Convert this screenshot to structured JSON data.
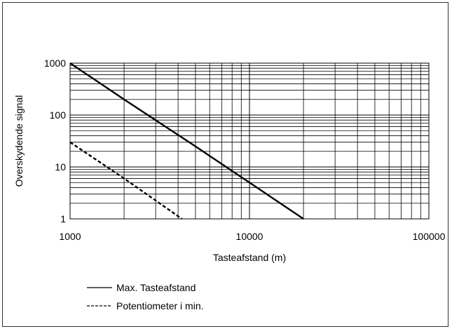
{
  "chart_data": {
    "type": "line",
    "title": "",
    "xlabel": "Tasteafstand (m)",
    "ylabel": "Overskydende signal",
    "x_scale": "log",
    "y_scale": "log",
    "xlim": [
      1000,
      100000
    ],
    "ylim": [
      1,
      1000
    ],
    "x_ticks": [
      1000,
      10000,
      100000
    ],
    "x_tick_labels": [
      "1000",
      "10000",
      "100000"
    ],
    "y_ticks": [
      1,
      10,
      100,
      1000
    ],
    "y_tick_labels": [
      "1",
      "10",
      "100",
      "1000"
    ],
    "grid": true,
    "legend_position": "below-left",
    "series": [
      {
        "name": "Max. Tasteafstand",
        "style": "solid",
        "color": "#000000",
        "x": [
          1000,
          2000,
          5000,
          10000,
          20000
        ],
        "y": [
          1000,
          200,
          25,
          5,
          1
        ]
      },
      {
        "name": "Potentiometer i min.",
        "style": "dashed",
        "color": "#000000",
        "x": [
          1000,
          2000,
          4200
        ],
        "y": [
          30,
          6,
          1
        ]
      }
    ]
  },
  "legend": {
    "items": [
      {
        "label": "Max. Tasteafstand",
        "style": "solid"
      },
      {
        "label": "Potentiometer i min.",
        "style": "dashed"
      }
    ]
  }
}
